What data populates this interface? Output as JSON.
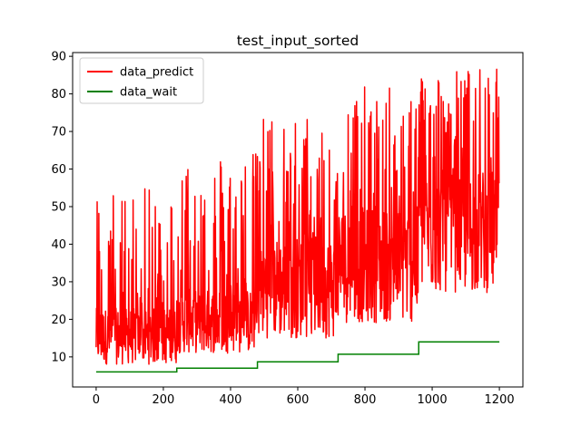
{
  "chart_data": {
    "type": "line",
    "title": "test_input_sorted",
    "xlabel": "",
    "ylabel": "",
    "xlim": [
      -70,
      1270
    ],
    "ylim": [
      2,
      91
    ],
    "xticks": [
      0,
      200,
      400,
      600,
      800,
      1000,
      1200
    ],
    "yticks": [
      10,
      20,
      30,
      40,
      50,
      60,
      70,
      80,
      90
    ],
    "grid": false,
    "legend": {
      "placement": "top-left"
    },
    "series": [
      {
        "name": "data_predict",
        "color": "#ff0000",
        "generated": true,
        "n_points": 1200,
        "segments": [
          {
            "x": [
              0,
              240
            ],
            "low": 8,
            "high": 55,
            "base_low": 8,
            "base_high": 23
          },
          {
            "x": [
              240,
              480
            ],
            "low": 10,
            "high": 65,
            "base_low": 11,
            "base_high": 28
          },
          {
            "x": [
              480,
              720
            ],
            "low": 14,
            "high": 75,
            "base_low": 15,
            "base_high": 42
          },
          {
            "x": [
              720,
              960
            ],
            "low": 18,
            "high": 82,
            "base_low": 19,
            "base_high": 50
          },
          {
            "x": [
              960,
              1200
            ],
            "low": 20,
            "high": 87,
            "base_low": 27,
            "base_high": 60
          }
        ]
      },
      {
        "name": "data_wait",
        "color": "#008000",
        "points": [
          [
            0,
            6
          ],
          [
            240,
            6
          ],
          [
            240,
            7
          ],
          [
            480,
            7
          ],
          [
            480,
            8.7
          ],
          [
            720,
            8.7
          ],
          [
            720,
            10.7
          ],
          [
            960,
            10.7
          ],
          [
            960,
            14
          ],
          [
            1200,
            14
          ]
        ]
      }
    ]
  }
}
